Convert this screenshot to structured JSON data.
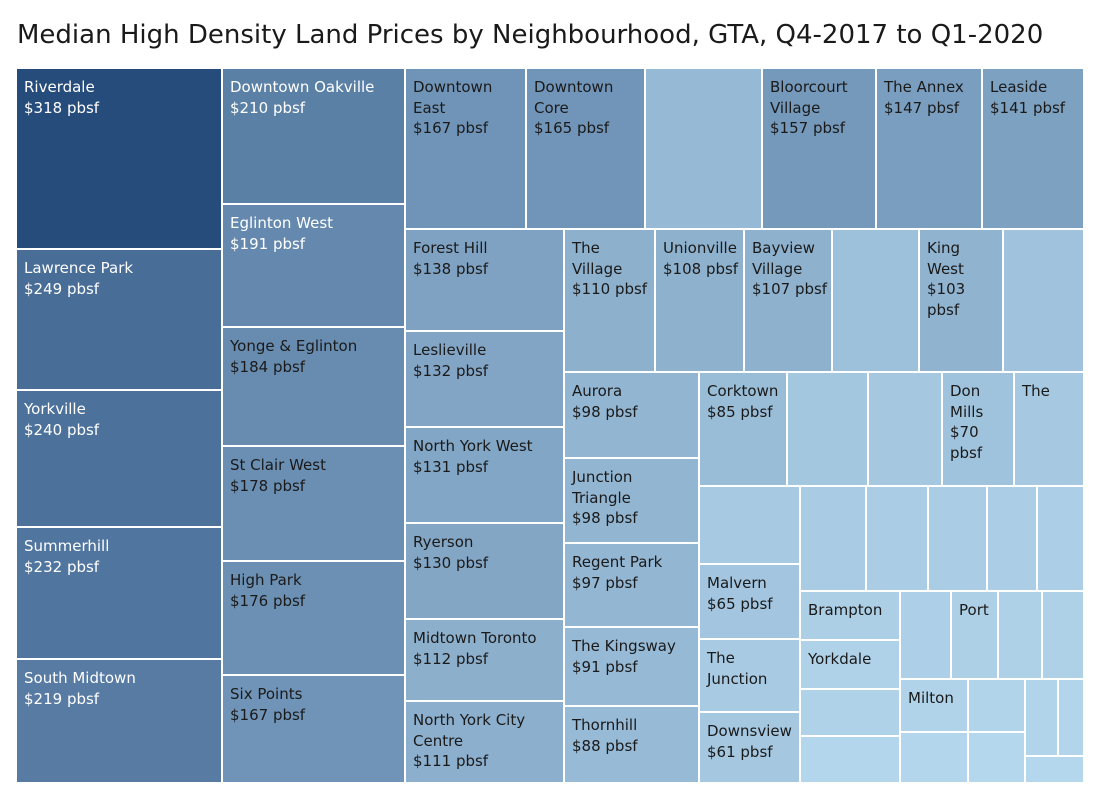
{
  "title": "Median High Density Land Prices by Neighbourhood, GTA, Q4-2017 to Q1-2020",
  "chart_data": {
    "type": "treemap",
    "title": "Median High Density Land Prices by Neighbourhood, GTA, Q4-2017 to Q1-2020",
    "unit": "pbsf",
    "items": [
      {
        "name": "Riverdale",
        "value": 318,
        "label": "Riverdale\n$318 pbsf"
      },
      {
        "name": "Lawrence Park",
        "value": 249,
        "label": "Lawrence Park\n$249 pbsf"
      },
      {
        "name": "Yorkville",
        "value": 240,
        "label": "Yorkville\n$240 pbsf"
      },
      {
        "name": "Summerhill",
        "value": 232,
        "label": "Summerhill\n$232 pbsf"
      },
      {
        "name": "South Midtown",
        "value": 219,
        "label": "South Midtown\n$219 pbsf"
      },
      {
        "name": "Downtown Oakville",
        "value": 210,
        "label": "Downtown Oakville\n$210 pbsf"
      },
      {
        "name": "Eglinton West",
        "value": 191,
        "label": "Eglinton West\n$191 pbsf"
      },
      {
        "name": "Yonge & Eglinton",
        "value": 184,
        "label": "Yonge & Eglinton\n$184 pbsf"
      },
      {
        "name": "St Clair West",
        "value": 178,
        "label": "St Clair West\n$178 pbsf"
      },
      {
        "name": "High Park",
        "value": 176,
        "label": "High Park\n$176 pbsf"
      },
      {
        "name": "Six Points",
        "value": 167,
        "label": "Six Points\n$167 pbsf"
      },
      {
        "name": "Downtown East",
        "value": 167,
        "label": "Downtown\nEast\n$167 pbsf"
      },
      {
        "name": "Downtown Core",
        "value": 165,
        "label": "Downtown\nCore\n$165 pbsf"
      },
      {
        "name": "",
        "value": null,
        "label": ""
      },
      {
        "name": "Bloorcourt Village",
        "value": 157,
        "label": "Bloorcourt\nVillage\n$157 pbsf"
      },
      {
        "name": "The Annex",
        "value": 147,
        "label": "The Annex\n$147 pbsf"
      },
      {
        "name": "Leaside",
        "value": 141,
        "label": "Leaside\n$141 pbsf"
      },
      {
        "name": "Forest Hill",
        "value": 138,
        "label": "Forest Hill\n$138 pbsf"
      },
      {
        "name": "Leslieville",
        "value": 132,
        "label": "Leslieville\n$132 pbsf"
      },
      {
        "name": "North York West",
        "value": 131,
        "label": "North York West\n$131 pbsf"
      },
      {
        "name": "Ryerson",
        "value": 130,
        "label": "Ryerson\n$130 pbsf"
      },
      {
        "name": "Midtown Toronto",
        "value": 112,
        "label": "Midtown Toronto\n$112 pbsf"
      },
      {
        "name": "North York City Centre",
        "value": 111,
        "label": "North York City\nCentre\n$111 pbsf"
      },
      {
        "name": "The Village",
        "value": 110,
        "label": "The\nVillage\n$110 pbsf"
      },
      {
        "name": "Unionville",
        "value": 108,
        "label": "Unionville\n$108 pbsf"
      },
      {
        "name": "Bayview Village",
        "value": 107,
        "label": "Bayview\nVillage\n$107 pbsf"
      },
      {
        "name": "",
        "value": null,
        "label": ""
      },
      {
        "name": "King West",
        "value": 103,
        "label": "King\nWest\n$103\npbsf"
      },
      {
        "name": "",
        "value": null,
        "label": ""
      },
      {
        "name": "Aurora",
        "value": 98,
        "label": "Aurora\n$98 pbsf"
      },
      {
        "name": "Junction Triangle",
        "value": 98,
        "label": "Junction\nTriangle\n$98 pbsf"
      },
      {
        "name": "Regent Park",
        "value": 97,
        "label": "Regent Park\n$97 pbsf"
      },
      {
        "name": "The Kingsway",
        "value": 91,
        "label": "The Kingsway\n$91 pbsf"
      },
      {
        "name": "Thornhill",
        "value": 88,
        "label": "Thornhill\n$88 pbsf"
      },
      {
        "name": "Corktown",
        "value": 85,
        "label": "Corktown\n$85 pbsf"
      },
      {
        "name": "",
        "value": null,
        "label": ""
      },
      {
        "name": "",
        "value": null,
        "label": ""
      },
      {
        "name": "Don Mills",
        "value": 70,
        "label": "Don\nMills\n$70\npbsf"
      },
      {
        "name": "The",
        "value": null,
        "label": "The"
      },
      {
        "name": "",
        "value": null,
        "label": ""
      },
      {
        "name": "Malvern",
        "value": 65,
        "label": "Malvern\n$65 pbsf"
      },
      {
        "name": "The Junction",
        "value": null,
        "label": "The\nJunction"
      },
      {
        "name": "Downsview",
        "value": 61,
        "label": "Downsview\n$61 pbsf"
      },
      {
        "name": "",
        "value": null,
        "label": ""
      },
      {
        "name": "",
        "value": null,
        "label": ""
      },
      {
        "name": "",
        "value": null,
        "label": ""
      },
      {
        "name": "",
        "value": null,
        "label": ""
      },
      {
        "name": "",
        "value": null,
        "label": ""
      },
      {
        "name": "Brampton",
        "value": null,
        "label": "Brampton"
      },
      {
        "name": "",
        "value": null,
        "label": ""
      },
      {
        "name": "Port",
        "value": null,
        "label": "Port"
      },
      {
        "name": "",
        "value": null,
        "label": ""
      },
      {
        "name": "",
        "value": null,
        "label": ""
      },
      {
        "name": "Yorkdale",
        "value": null,
        "label": "Yorkdale"
      },
      {
        "name": "",
        "value": null,
        "label": ""
      },
      {
        "name": "Milton",
        "value": null,
        "label": "Milton"
      },
      {
        "name": "",
        "value": null,
        "label": ""
      },
      {
        "name": "",
        "value": null,
        "label": ""
      },
      {
        "name": "",
        "value": null,
        "label": ""
      },
      {
        "name": "",
        "value": null,
        "label": ""
      },
      {
        "name": "",
        "value": null,
        "label": ""
      },
      {
        "name": "",
        "value": null,
        "label": ""
      },
      {
        "name": "",
        "value": null,
        "label": ""
      },
      {
        "name": "",
        "value": null,
        "label": ""
      }
    ]
  }
}
